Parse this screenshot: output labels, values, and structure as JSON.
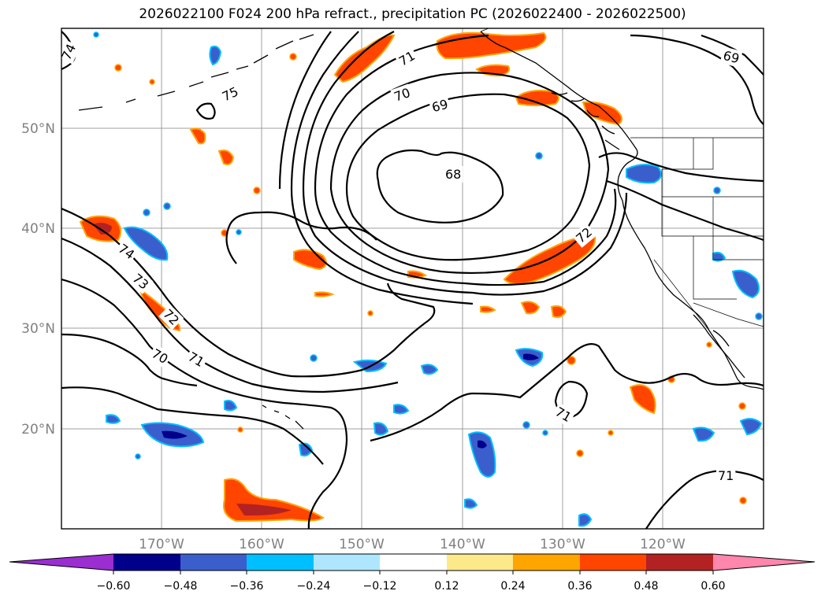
{
  "title": "2026022100 F024 200 hPa refract., precipitation PC (2026022400 - 2026022500)",
  "axes": {
    "lat_labels": [
      "50°N",
      "40°N",
      "30°N",
      "20°N"
    ],
    "lon_labels": [
      "170°W",
      "160°W",
      "150°W",
      "140°W",
      "130°W",
      "120°W"
    ]
  },
  "colorbar": {
    "ticks": [
      "−0.60",
      "−0.48",
      "−0.36",
      "−0.24",
      "−0.12",
      "0.12",
      "0.24",
      "0.36",
      "0.48",
      "0.60"
    ],
    "colors": [
      "#9a2ed1",
      "#00008b",
      "#3a5fcd",
      "#00bfff",
      "#aee6ff",
      "#ffffff",
      "#fde98a",
      "#ffa500",
      "#ff4500",
      "#b22222",
      "#ff86ad"
    ]
  },
  "contour_labels": [
    "74",
    "75",
    "71",
    "70",
    "69",
    "68",
    "69",
    "72",
    "74",
    "73",
    "72",
    "70",
    "71",
    "71",
    "71"
  ],
  "colors": {
    "neg_light": "#aee6ff",
    "neg_mid": "#00bfff",
    "neg_dark": "#3a5fcd",
    "neg_darkest": "#00008b",
    "neg_min": "#9a2ed1",
    "pos_light": "#fde98a",
    "pos_mid": "#ffa500",
    "pos_dark": "#ff4500",
    "pos_darker": "#b22222"
  }
}
